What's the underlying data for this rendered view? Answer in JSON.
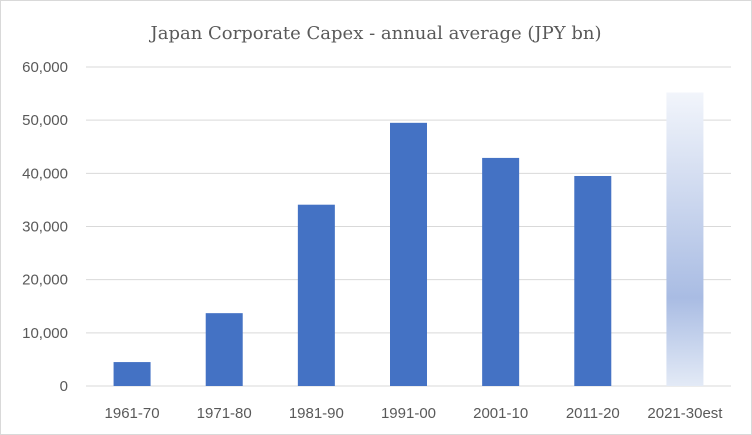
{
  "chart_data": {
    "type": "bar",
    "title": "Japan Corporate Capex - annual average (JPY bn)",
    "xlabel": "",
    "ylabel": "",
    "categories": [
      "1961-70",
      "1971-80",
      "1981-90",
      "1991-00",
      "2001-10",
      "2011-20",
      "2021-30est"
    ],
    "values": [
      4500,
      13700,
      34100,
      49500,
      42900,
      39500,
      55200
    ],
    "ylim": [
      0,
      60000
    ],
    "yticks": [
      "0",
      "10,000",
      "20,000",
      "30,000",
      "40,000",
      "50,000",
      "60,000"
    ],
    "grid": true,
    "legend": "none",
    "colors": {
      "bar": "#4472c4",
      "estimate_top": "#f2f5fb",
      "estimate_mid": "#a9bce3",
      "estimate_bottom": "#e3eaf6"
    }
  }
}
